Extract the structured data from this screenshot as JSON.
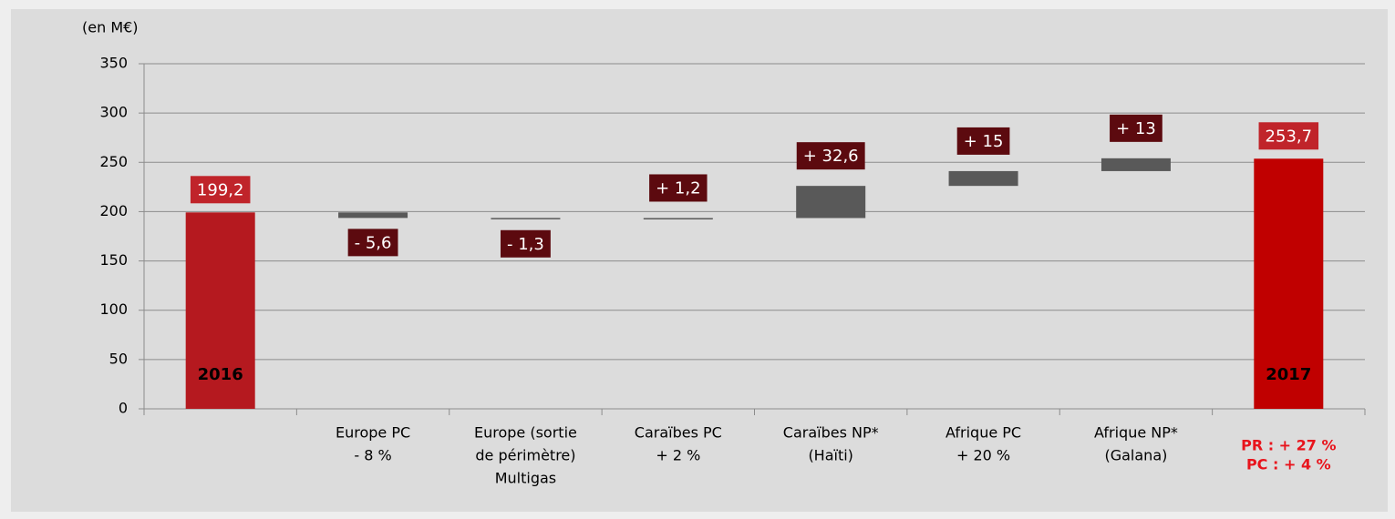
{
  "chart_data": {
    "type": "waterfall",
    "y_label": "(en M€)",
    "categories": [
      null,
      [
        "Europe PC",
        "- 8 %"
      ],
      [
        "Europe (sortie",
        "de périmètre)",
        "Multigas"
      ],
      [
        "Caraïbes PC",
        "+ 2 %"
      ],
      [
        "Caraïbes NP*",
        "(Haïti)"
      ],
      [
        "Afrique PC",
        "+ 20 %"
      ],
      [
        "Afrique NP*",
        "(Galana)"
      ],
      [
        "PR : + 27 %",
        "PC : +   4 %"
      ]
    ],
    "measures": [
      "absolute",
      "relative",
      "relative",
      "relative",
      "relative",
      "relative",
      "relative",
      "absolute"
    ],
    "values": [
      199.2,
      -5.6,
      -1.3,
      1.2,
      32.6,
      15,
      13,
      253.7
    ],
    "value_labels": [
      "199,2",
      "- 5,6",
      "- 1,3",
      "+ 1,2",
      "+ 32,6",
      "+ 15",
      "+ 13",
      "253,7"
    ],
    "bar_texts": [
      "2016",
      null,
      null,
      null,
      null,
      null,
      null,
      "2017"
    ],
    "colors": [
      "#b5191f",
      "#595959",
      "#595959",
      "#595959",
      "#595959",
      "#595959",
      "#595959",
      "#c00000"
    ],
    "label_color": "#5c0a0f",
    "total_label_color": "#c0242a",
    "ylim": [
      0,
      350
    ],
    "yticks": [
      0,
      50,
      100,
      150,
      200,
      250,
      300,
      350
    ],
    "grid": true
  }
}
